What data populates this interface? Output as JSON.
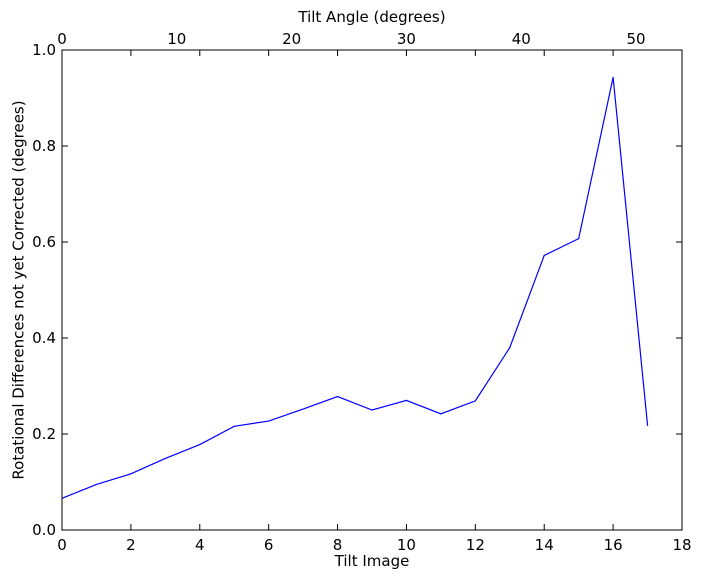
{
  "chart_data": {
    "type": "line",
    "xlabel": "Tilt Image",
    "ylabel": "Rotational Differences not yet Corrected (degrees)",
    "top_xlabel": "Tilt Angle (degrees)",
    "xlim": [
      0,
      18
    ],
    "ylim": [
      0.0,
      1.0
    ],
    "top_xlim": [
      0,
      54
    ],
    "x_ticks": [
      0,
      2,
      4,
      6,
      8,
      10,
      12,
      14,
      16,
      18
    ],
    "x_tick_labels": [
      "0",
      "2",
      "4",
      "6",
      "8",
      "10",
      "12",
      "14",
      "16",
      "18"
    ],
    "y_ticks": [
      0.0,
      0.2,
      0.4,
      0.6,
      0.8,
      1.0
    ],
    "y_tick_labels": [
      "0.0",
      "0.2",
      "0.4",
      "0.6",
      "0.8",
      "1.0"
    ],
    "top_x_ticks": [
      0,
      10,
      20,
      30,
      40,
      50
    ],
    "top_x_tick_labels": [
      "0",
      "10",
      "20",
      "30",
      "40",
      "50"
    ],
    "grid": false,
    "series": [
      {
        "color": "#0000ff",
        "x": [
          0,
          1,
          2,
          3,
          4,
          5,
          6,
          7,
          8,
          9,
          10,
          11,
          12,
          13,
          14,
          15,
          16,
          17
        ],
        "y": [
          0.066,
          0.095,
          0.117,
          0.149,
          0.178,
          0.216,
          0.227,
          0.252,
          0.278,
          0.25,
          0.27,
          0.242,
          0.269,
          0.38,
          0.572,
          0.607,
          0.943,
          0.218
        ]
      }
    ]
  }
}
